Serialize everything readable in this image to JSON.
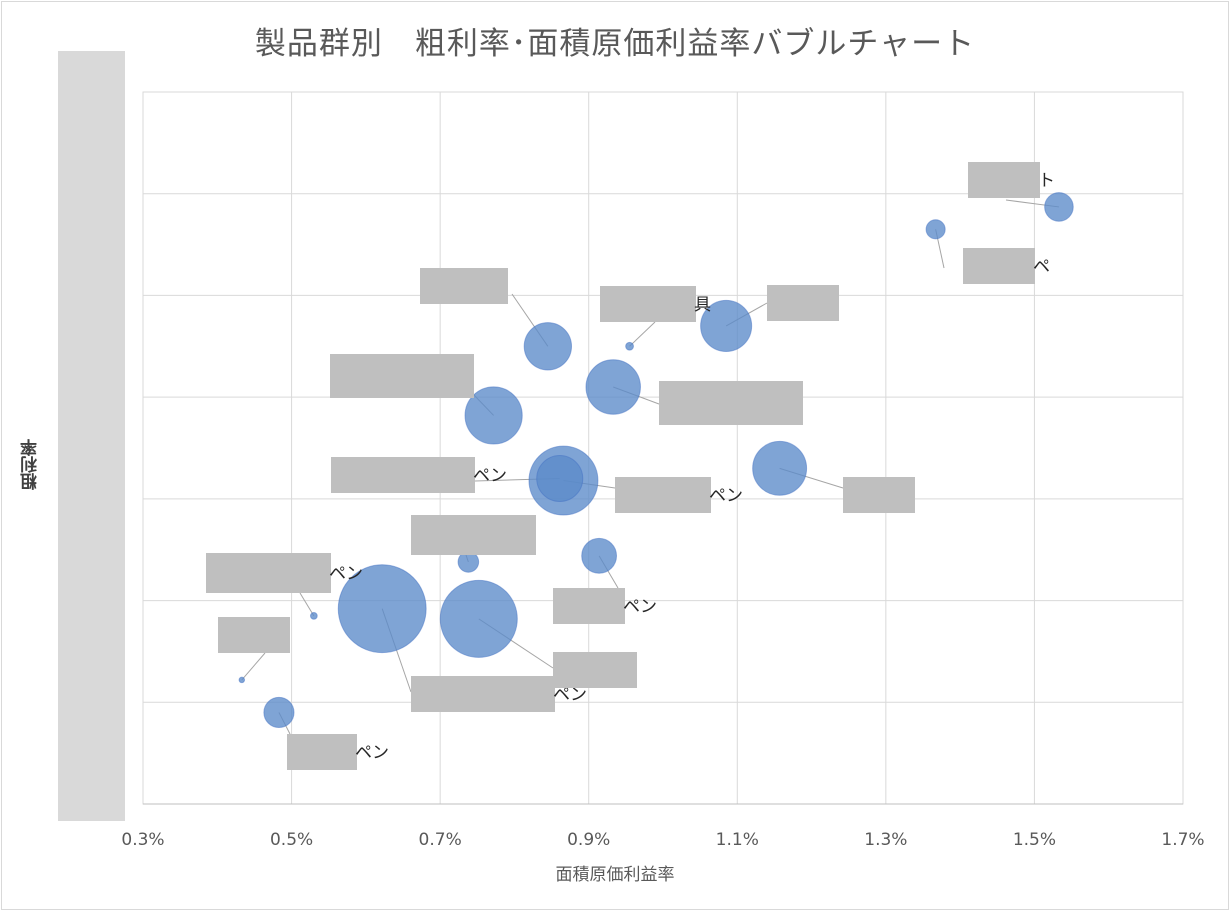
{
  "chart_data": {
    "type": "scatter",
    "subtype": "bubble",
    "title": "製品群別　粗利率･面積原価利益率バブルチャート",
    "xlabel": "面積原価利益率",
    "ylabel": "粗利率",
    "xlim": [
      0.003,
      0.017
    ],
    "x_ticks": [
      "0.3%",
      "0.5%",
      "0.7%",
      "0.9%",
      "1.1%",
      "1.3%",
      "1.5%",
      "1.7%"
    ],
    "x_tick_values": [
      0.003,
      0.005,
      0.007,
      0.009,
      0.011,
      0.013,
      0.015,
      0.017
    ],
    "ylim": [
      0,
      7
    ],
    "y_grid_count": 7,
    "grid": true,
    "legend": "none",
    "bubble_color": "#5b8bc9",
    "bubble_edge": "#4472c4",
    "mask_color": "#bfbfbf",
    "points": [
      {
        "x": 0.01533,
        "y": 5.87,
        "size": 270,
        "label_suffix": "ト"
      },
      {
        "x": 0.01367,
        "y": 5.65,
        "size": 120,
        "label_suffix": "ペ"
      },
      {
        "x": 0.01085,
        "y": 4.7,
        "size": 860,
        "label_suffix": ""
      },
      {
        "x": 0.00955,
        "y": 4.5,
        "size": 20,
        "label_suffix": "具"
      },
      {
        "x": 0.00845,
        "y": 4.5,
        "size": 740,
        "label_suffix": ""
      },
      {
        "x": 0.00933,
        "y": 4.1,
        "size": 980,
        "label_suffix": ""
      },
      {
        "x": 0.00772,
        "y": 3.82,
        "size": 1080,
        "label_suffix": ""
      },
      {
        "x": 0.01157,
        "y": 3.3,
        "size": 960,
        "label_suffix": ""
      },
      {
        "x": 0.00866,
        "y": 3.18,
        "size": 1570,
        "label_suffix": "ペン"
      },
      {
        "x": 0.00861,
        "y": 3.2,
        "size": 700,
        "label_suffix": "ペン"
      },
      {
        "x": 0.00738,
        "y": 2.38,
        "size": 140,
        "label_suffix": ""
      },
      {
        "x": 0.00914,
        "y": 2.44,
        "size": 400,
        "label_suffix": "ペン"
      },
      {
        "x": 0.00622,
        "y": 1.92,
        "size": 2550,
        "label_suffix": "ペン"
      },
      {
        "x": 0.00752,
        "y": 1.82,
        "size": 1960,
        "label_suffix": ""
      },
      {
        "x": 0.0053,
        "y": 1.85,
        "size": 15,
        "label_suffix": "ペン"
      },
      {
        "x": 0.00433,
        "y": 1.22,
        "size": 10,
        "label_suffix": ""
      },
      {
        "x": 0.00483,
        "y": 0.9,
        "size": 300,
        "label_suffix": "ペン"
      }
    ]
  }
}
